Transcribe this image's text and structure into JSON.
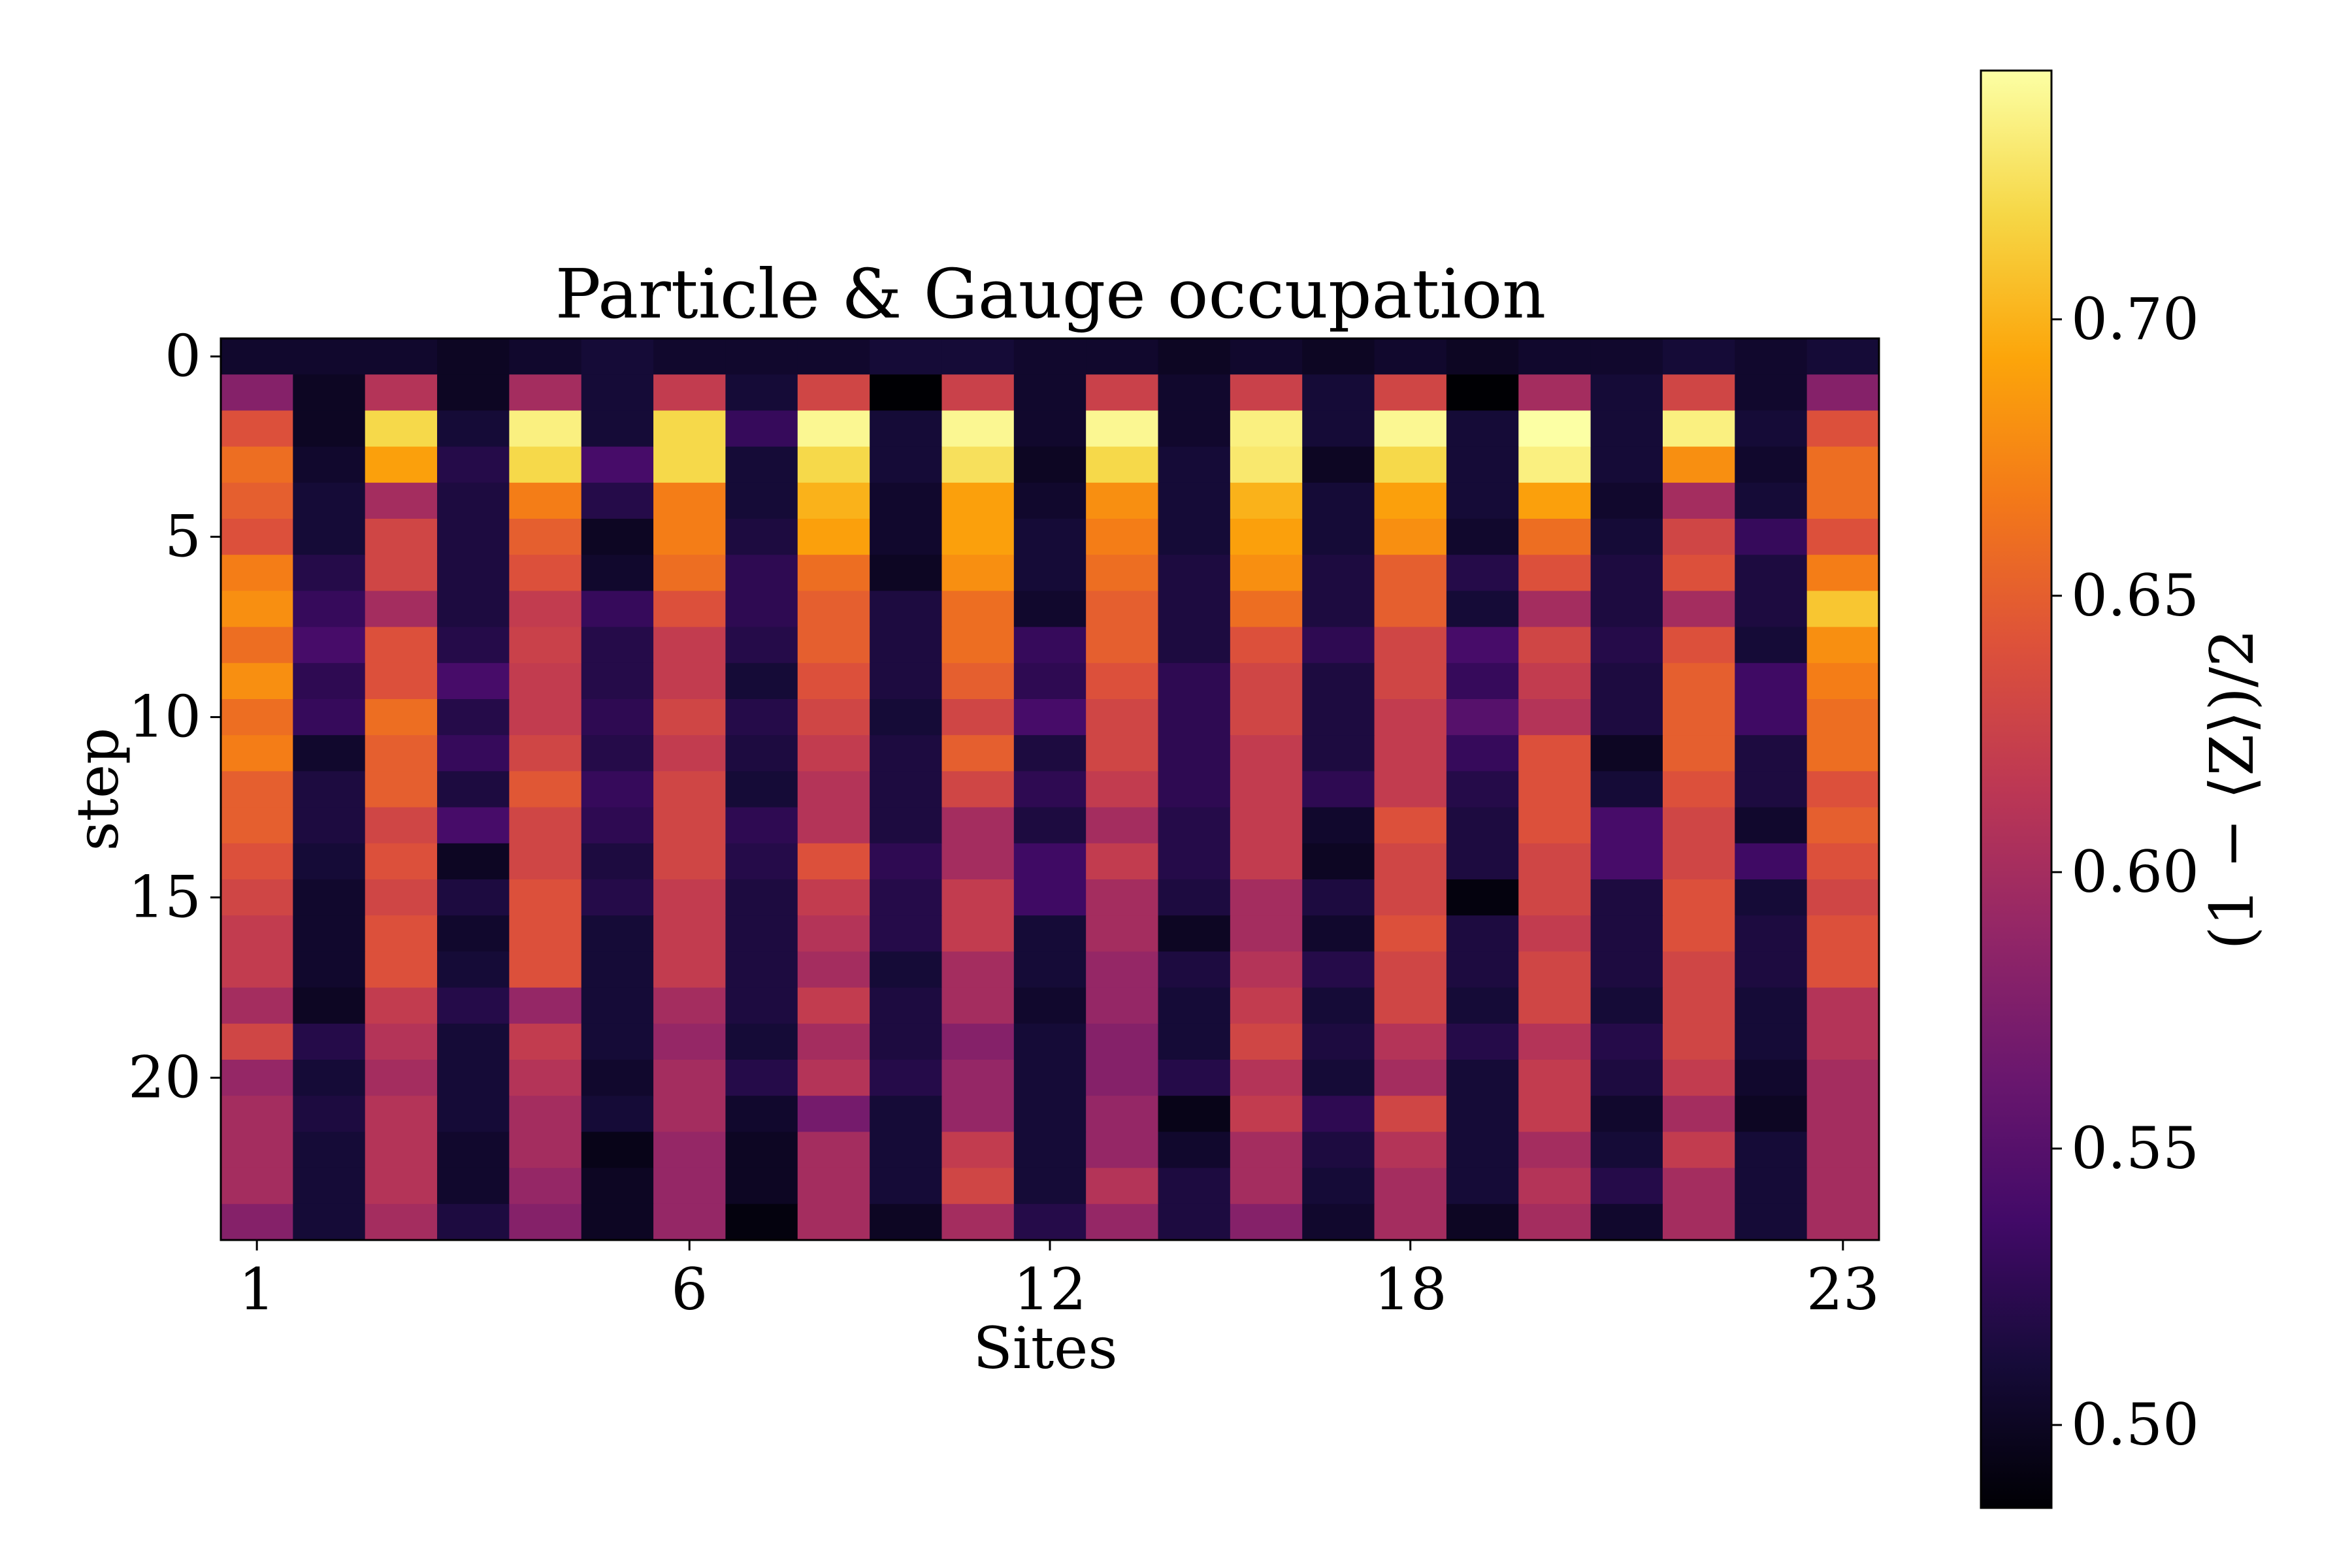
{
  "chart_data": {
    "type": "heatmap",
    "title": "Particle & Gauge occupation",
    "xlabel": "Sites",
    "ylabel": "step",
    "colorbar_label": "(1 − ⟨Z⟩)/2",
    "colormap": "inferno",
    "value_range": [
      0.485,
      0.745
    ],
    "x_ticks": [
      {
        "index": 0,
        "label": "1"
      },
      {
        "index": 6,
        "label": "6"
      },
      {
        "index": 11,
        "label": "12"
      },
      {
        "index": 16,
        "label": "18"
      },
      {
        "index": 22,
        "label": "23"
      }
    ],
    "y_ticks": [
      {
        "index": 0,
        "label": "0"
      },
      {
        "index": 5,
        "label": "5"
      },
      {
        "index": 10,
        "label": "10"
      },
      {
        "index": 15,
        "label": "15"
      },
      {
        "index": 20,
        "label": "20"
      }
    ],
    "colorbar_ticks": [
      {
        "value": 0.5,
        "label": "0.50"
      },
      {
        "value": 0.55,
        "label": "0.55"
      },
      {
        "value": 0.6,
        "label": "0.60"
      },
      {
        "value": 0.65,
        "label": "0.65"
      },
      {
        "value": 0.7,
        "label": "0.70"
      }
    ],
    "columns": 23,
    "rows": 25,
    "values": [
      [
        0.505,
        0.505,
        0.505,
        0.5,
        0.505,
        0.51,
        0.505,
        0.505,
        0.505,
        0.51,
        0.51,
        0.505,
        0.505,
        0.5,
        0.505,
        0.5,
        0.505,
        0.5,
        0.505,
        0.505,
        0.51,
        0.505,
        0.51
      ],
      [
        0.58,
        0.5,
        0.61,
        0.5,
        0.6,
        0.51,
        0.62,
        0.51,
        0.63,
        0.485,
        0.625,
        0.505,
        0.625,
        0.505,
        0.625,
        0.51,
        0.63,
        0.485,
        0.6,
        0.51,
        0.63,
        0.505,
        0.58
      ],
      [
        0.64,
        0.5,
        0.72,
        0.51,
        0.735,
        0.51,
        0.72,
        0.53,
        0.74,
        0.51,
        0.74,
        0.505,
        0.74,
        0.505,
        0.735,
        0.51,
        0.74,
        0.51,
        0.745,
        0.51,
        0.735,
        0.51,
        0.64
      ],
      [
        0.66,
        0.505,
        0.69,
        0.52,
        0.72,
        0.54,
        0.72,
        0.51,
        0.72,
        0.51,
        0.725,
        0.5,
        0.72,
        0.51,
        0.73,
        0.5,
        0.72,
        0.51,
        0.735,
        0.51,
        0.68,
        0.505,
        0.66
      ],
      [
        0.65,
        0.51,
        0.6,
        0.515,
        0.67,
        0.52,
        0.67,
        0.51,
        0.7,
        0.505,
        0.69,
        0.505,
        0.68,
        0.51,
        0.7,
        0.51,
        0.69,
        0.51,
        0.69,
        0.505,
        0.6,
        0.51,
        0.66
      ],
      [
        0.64,
        0.51,
        0.63,
        0.515,
        0.65,
        0.5,
        0.67,
        0.515,
        0.69,
        0.505,
        0.69,
        0.51,
        0.67,
        0.51,
        0.69,
        0.51,
        0.68,
        0.505,
        0.66,
        0.51,
        0.63,
        0.53,
        0.64
      ],
      [
        0.67,
        0.52,
        0.63,
        0.515,
        0.64,
        0.505,
        0.66,
        0.525,
        0.66,
        0.5,
        0.68,
        0.51,
        0.66,
        0.515,
        0.68,
        0.515,
        0.65,
        0.52,
        0.64,
        0.515,
        0.64,
        0.515,
        0.67
      ],
      [
        0.68,
        0.53,
        0.6,
        0.515,
        0.62,
        0.53,
        0.64,
        0.525,
        0.65,
        0.515,
        0.66,
        0.505,
        0.65,
        0.515,
        0.66,
        0.515,
        0.65,
        0.51,
        0.6,
        0.515,
        0.6,
        0.515,
        0.71
      ],
      [
        0.66,
        0.54,
        0.64,
        0.52,
        0.625,
        0.52,
        0.62,
        0.52,
        0.65,
        0.515,
        0.66,
        0.53,
        0.65,
        0.515,
        0.64,
        0.525,
        0.63,
        0.54,
        0.63,
        0.52,
        0.64,
        0.51,
        0.68
      ],
      [
        0.68,
        0.525,
        0.64,
        0.54,
        0.62,
        0.52,
        0.62,
        0.51,
        0.64,
        0.515,
        0.65,
        0.525,
        0.64,
        0.525,
        0.63,
        0.515,
        0.63,
        0.53,
        0.62,
        0.515,
        0.65,
        0.535,
        0.67
      ],
      [
        0.66,
        0.53,
        0.66,
        0.52,
        0.62,
        0.525,
        0.63,
        0.52,
        0.63,
        0.51,
        0.63,
        0.54,
        0.63,
        0.525,
        0.63,
        0.515,
        0.62,
        0.55,
        0.61,
        0.515,
        0.65,
        0.535,
        0.66
      ],
      [
        0.67,
        0.505,
        0.65,
        0.53,
        0.63,
        0.52,
        0.62,
        0.515,
        0.62,
        0.515,
        0.65,
        0.515,
        0.63,
        0.525,
        0.62,
        0.515,
        0.62,
        0.53,
        0.64,
        0.5,
        0.65,
        0.515,
        0.66
      ],
      [
        0.65,
        0.515,
        0.65,
        0.515,
        0.645,
        0.53,
        0.63,
        0.51,
        0.61,
        0.515,
        0.63,
        0.525,
        0.62,
        0.525,
        0.62,
        0.525,
        0.62,
        0.52,
        0.64,
        0.51,
        0.64,
        0.515,
        0.64
      ],
      [
        0.65,
        0.515,
        0.63,
        0.54,
        0.63,
        0.525,
        0.63,
        0.525,
        0.61,
        0.515,
        0.6,
        0.515,
        0.6,
        0.52,
        0.62,
        0.505,
        0.64,
        0.515,
        0.64,
        0.54,
        0.63,
        0.505,
        0.65
      ],
      [
        0.64,
        0.51,
        0.64,
        0.5,
        0.63,
        0.515,
        0.63,
        0.52,
        0.64,
        0.525,
        0.6,
        0.535,
        0.62,
        0.52,
        0.62,
        0.5,
        0.63,
        0.515,
        0.63,
        0.54,
        0.63,
        0.535,
        0.64
      ],
      [
        0.63,
        0.505,
        0.63,
        0.515,
        0.64,
        0.52,
        0.62,
        0.515,
        0.62,
        0.52,
        0.62,
        0.535,
        0.6,
        0.515,
        0.6,
        0.515,
        0.63,
        0.49,
        0.63,
        0.515,
        0.64,
        0.51,
        0.63
      ],
      [
        0.62,
        0.505,
        0.64,
        0.505,
        0.64,
        0.51,
        0.62,
        0.515,
        0.61,
        0.52,
        0.62,
        0.51,
        0.6,
        0.5,
        0.6,
        0.505,
        0.64,
        0.515,
        0.62,
        0.515,
        0.64,
        0.515,
        0.64
      ],
      [
        0.62,
        0.505,
        0.64,
        0.51,
        0.64,
        0.51,
        0.62,
        0.515,
        0.6,
        0.51,
        0.6,
        0.51,
        0.59,
        0.515,
        0.61,
        0.52,
        0.63,
        0.515,
        0.63,
        0.515,
        0.63,
        0.515,
        0.64
      ],
      [
        0.6,
        0.5,
        0.62,
        0.52,
        0.59,
        0.51,
        0.6,
        0.515,
        0.62,
        0.515,
        0.6,
        0.505,
        0.59,
        0.51,
        0.62,
        0.51,
        0.63,
        0.51,
        0.63,
        0.51,
        0.63,
        0.51,
        0.61
      ],
      [
        0.63,
        0.52,
        0.61,
        0.51,
        0.62,
        0.51,
        0.59,
        0.51,
        0.6,
        0.515,
        0.58,
        0.51,
        0.58,
        0.51,
        0.63,
        0.515,
        0.61,
        0.52,
        0.61,
        0.52,
        0.63,
        0.51,
        0.61
      ],
      [
        0.59,
        0.51,
        0.6,
        0.51,
        0.61,
        0.505,
        0.6,
        0.52,
        0.61,
        0.52,
        0.59,
        0.51,
        0.58,
        0.52,
        0.61,
        0.51,
        0.6,
        0.51,
        0.62,
        0.515,
        0.62,
        0.505,
        0.6
      ],
      [
        0.6,
        0.515,
        0.61,
        0.51,
        0.6,
        0.51,
        0.6,
        0.505,
        0.57,
        0.51,
        0.59,
        0.51,
        0.59,
        0.495,
        0.62,
        0.525,
        0.63,
        0.51,
        0.62,
        0.505,
        0.6,
        0.5,
        0.6
      ],
      [
        0.6,
        0.51,
        0.61,
        0.505,
        0.6,
        0.495,
        0.59,
        0.5,
        0.6,
        0.51,
        0.62,
        0.51,
        0.59,
        0.505,
        0.6,
        0.515,
        0.61,
        0.51,
        0.6,
        0.51,
        0.62,
        0.51,
        0.6
      ],
      [
        0.6,
        0.51,
        0.61,
        0.505,
        0.59,
        0.5,
        0.59,
        0.5,
        0.6,
        0.51,
        0.63,
        0.51,
        0.61,
        0.515,
        0.6,
        0.51,
        0.6,
        0.51,
        0.61,
        0.52,
        0.6,
        0.51,
        0.6
      ],
      [
        0.58,
        0.51,
        0.6,
        0.515,
        0.58,
        0.5,
        0.59,
        0.49,
        0.6,
        0.5,
        0.6,
        0.52,
        0.59,
        0.515,
        0.58,
        0.505,
        0.6,
        0.5,
        0.6,
        0.505,
        0.6,
        0.51,
        0.6
      ]
    ]
  }
}
